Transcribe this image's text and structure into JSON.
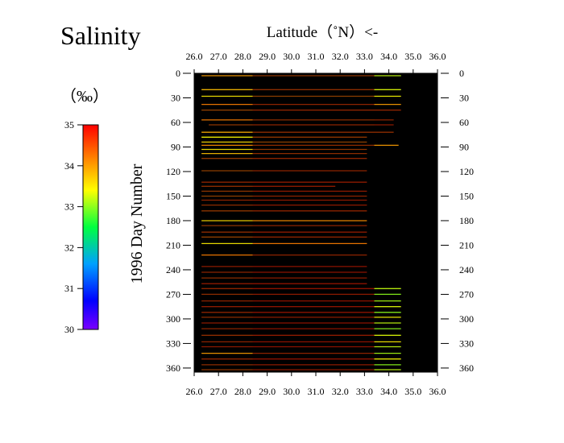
{
  "chart_data": {
    "type": "heatmap",
    "title": "Salinity",
    "xlabel": "Latitude（˚N）<-",
    "ylabel": "1996  Day  Number",
    "x_ticks": [
      "26.0",
      "27.0",
      "28.0",
      "29.0",
      "30.0",
      "31.0",
      "32.0",
      "33.0",
      "34.0",
      "35.0",
      "36.0"
    ],
    "y_ticks": [
      "0",
      "30",
      "60",
      "90",
      "120",
      "150",
      "180",
      "210",
      "240",
      "270",
      "300",
      "330",
      "360"
    ],
    "xlim": [
      26.0,
      36.0
    ],
    "ylim": [
      0,
      365
    ],
    "background_color": "#000000",
    "colorbar": {
      "label": "（‰）",
      "min": 30,
      "max": 35,
      "ticks": [
        "35",
        "34",
        "33",
        "32",
        "31",
        "30"
      ],
      "colors": [
        "#7a00ff",
        "#0000ff",
        "#00a0ff",
        "#00ff40",
        "#ffff00",
        "#ff8000",
        "#ff0000"
      ]
    },
    "transects": [
      {
        "day": 3,
        "lat_start": 26.3,
        "lat_end": 34.5,
        "segments": [
          {
            "from": 26.3,
            "to": 28.4,
            "s": 34.0
          },
          {
            "from": 28.4,
            "to": 33.4,
            "s": 34.4
          },
          {
            "from": 33.4,
            "to": 34.5,
            "s": 33.2
          }
        ]
      },
      {
        "day": 20,
        "lat_start": 26.3,
        "lat_end": 34.5,
        "segments": [
          {
            "from": 26.3,
            "to": 28.4,
            "s": 33.8
          },
          {
            "from": 28.4,
            "to": 33.4,
            "s": 34.5
          },
          {
            "from": 33.4,
            "to": 34.5,
            "s": 33.3
          }
        ]
      },
      {
        "day": 28,
        "lat_start": 26.3,
        "lat_end": 34.5,
        "segments": [
          {
            "from": 26.3,
            "to": 28.4,
            "s": 33.5
          },
          {
            "from": 28.4,
            "to": 33.4,
            "s": 34.3
          },
          {
            "from": 33.4,
            "to": 34.5,
            "s": 33.4
          }
        ]
      },
      {
        "day": 38,
        "lat_start": 26.3,
        "lat_end": 34.5,
        "segments": [
          {
            "from": 26.3,
            "to": 28.4,
            "s": 34.2
          },
          {
            "from": 28.4,
            "to": 33.4,
            "s": 34.6
          },
          {
            "from": 33.4,
            "to": 34.5,
            "s": 34.0
          }
        ]
      },
      {
        "day": 45,
        "lat_start": 26.3,
        "lat_end": 34.5,
        "segments": [
          {
            "from": 26.3,
            "to": 28.4,
            "s": 34.3
          },
          {
            "from": 28.4,
            "to": 33.4,
            "s": 34.6
          },
          {
            "from": 33.4,
            "to": 34.5,
            "s": 34.6
          }
        ]
      },
      {
        "day": 57,
        "lat_start": 26.3,
        "lat_end": 34.2,
        "segments": [
          {
            "from": 26.3,
            "to": 28.4,
            "s": 34.2
          },
          {
            "from": 28.4,
            "to": 33.4,
            "s": 34.5
          },
          {
            "from": 33.4,
            "to": 34.2,
            "s": 34.6
          }
        ]
      },
      {
        "day": 63,
        "lat_start": 26.6,
        "lat_end": 34.2,
        "segments": [
          {
            "from": 26.6,
            "to": 28.4,
            "s": 34.4
          },
          {
            "from": 28.4,
            "to": 33.4,
            "s": 34.6
          },
          {
            "from": 33.4,
            "to": 34.2,
            "s": 34.7
          }
        ]
      },
      {
        "day": 72,
        "lat_start": 26.3,
        "lat_end": 34.2,
        "segments": [
          {
            "from": 26.3,
            "to": 28.4,
            "s": 33.9
          },
          {
            "from": 28.4,
            "to": 33.4,
            "s": 34.5
          },
          {
            "from": 33.4,
            "to": 34.2,
            "s": 34.5
          }
        ]
      },
      {
        "day": 78,
        "lat_start": 26.3,
        "lat_end": 33.1,
        "segments": [
          {
            "from": 26.3,
            "to": 28.4,
            "s": 33.4
          },
          {
            "from": 28.4,
            "to": 33.1,
            "s": 34.4
          }
        ]
      },
      {
        "day": 84,
        "lat_start": 26.3,
        "lat_end": 33.1,
        "segments": [
          {
            "from": 26.3,
            "to": 28.4,
            "s": 33.6
          },
          {
            "from": 28.4,
            "to": 33.1,
            "s": 34.3
          }
        ]
      },
      {
        "day": 88,
        "lat_start": 26.3,
        "lat_end": 34.4,
        "segments": [
          {
            "from": 26.3,
            "to": 28.4,
            "s": 34.1
          },
          {
            "from": 28.4,
            "to": 33.4,
            "s": 34.5
          },
          {
            "from": 33.4,
            "to": 34.4,
            "s": 34.0
          }
        ]
      },
      {
        "day": 93,
        "lat_start": 26.3,
        "lat_end": 33.1,
        "segments": [
          {
            "from": 26.3,
            "to": 28.4,
            "s": 33.5
          },
          {
            "from": 28.4,
            "to": 33.1,
            "s": 34.4
          }
        ]
      },
      {
        "day": 98,
        "lat_start": 26.3,
        "lat_end": 33.1,
        "segments": [
          {
            "from": 26.3,
            "to": 28.4,
            "s": 33.8
          },
          {
            "from": 28.4,
            "to": 33.1,
            "s": 34.5
          }
        ]
      },
      {
        "day": 104,
        "lat_start": 26.3,
        "lat_end": 33.1,
        "segments": [
          {
            "from": 26.3,
            "to": 28.4,
            "s": 34.4
          },
          {
            "from": 28.4,
            "to": 33.1,
            "s": 34.6
          }
        ]
      },
      {
        "day": 119,
        "lat_start": 26.3,
        "lat_end": 33.1,
        "segments": [
          {
            "from": 26.3,
            "to": 28.4,
            "s": 34.3
          },
          {
            "from": 28.4,
            "to": 33.1,
            "s": 34.6
          }
        ]
      },
      {
        "day": 133,
        "lat_start": 26.3,
        "lat_end": 33.1,
        "segments": [
          {
            "from": 26.3,
            "to": 28.4,
            "s": 34.6
          },
          {
            "from": 28.4,
            "to": 33.1,
            "s": 34.7
          }
        ]
      },
      {
        "day": 138,
        "lat_start": 26.3,
        "lat_end": 31.8,
        "segments": [
          {
            "from": 26.3,
            "to": 28.4,
            "s": 34.5
          },
          {
            "from": 28.4,
            "to": 31.8,
            "s": 34.7
          }
        ]
      },
      {
        "day": 144,
        "lat_start": 26.3,
        "lat_end": 33.1,
        "segments": [
          {
            "from": 26.3,
            "to": 28.4,
            "s": 34.4
          },
          {
            "from": 28.4,
            "to": 33.1,
            "s": 34.7
          }
        ]
      },
      {
        "day": 150,
        "lat_start": 26.3,
        "lat_end": 33.1,
        "segments": [
          {
            "from": 26.3,
            "to": 28.4,
            "s": 34.3
          },
          {
            "from": 28.4,
            "to": 33.1,
            "s": 34.6
          }
        ]
      },
      {
        "day": 155,
        "lat_start": 26.3,
        "lat_end": 33.1,
        "segments": [
          {
            "from": 26.3,
            "to": 28.4,
            "s": 34.6
          },
          {
            "from": 28.4,
            "to": 33.1,
            "s": 34.7
          }
        ]
      },
      {
        "day": 161,
        "lat_start": 26.3,
        "lat_end": 33.1,
        "segments": [
          {
            "from": 26.3,
            "to": 28.4,
            "s": 34.5
          },
          {
            "from": 28.4,
            "to": 33.1,
            "s": 34.7
          }
        ]
      },
      {
        "day": 168,
        "lat_start": 26.3,
        "lat_end": 33.1,
        "segments": [
          {
            "from": 26.3,
            "to": 28.4,
            "s": 34.4
          },
          {
            "from": 28.4,
            "to": 33.1,
            "s": 34.6
          }
        ]
      },
      {
        "day": 180,
        "lat_start": 26.3,
        "lat_end": 33.1,
        "segments": [
          {
            "from": 26.3,
            "to": 28.4,
            "s": 33.6
          },
          {
            "from": 28.4,
            "to": 33.1,
            "s": 34.1
          }
        ]
      },
      {
        "day": 186,
        "lat_start": 26.3,
        "lat_end": 33.1,
        "segments": [
          {
            "from": 26.3,
            "to": 28.4,
            "s": 34.4
          },
          {
            "from": 28.4,
            "to": 33.1,
            "s": 34.6
          }
        ]
      },
      {
        "day": 194,
        "lat_start": 26.3,
        "lat_end": 33.1,
        "segments": [
          {
            "from": 26.3,
            "to": 28.4,
            "s": 34.5
          },
          {
            "from": 28.4,
            "to": 33.1,
            "s": 34.7
          }
        ]
      },
      {
        "day": 200,
        "lat_start": 26.3,
        "lat_end": 33.1,
        "segments": [
          {
            "from": 26.3,
            "to": 28.4,
            "s": 34.3
          },
          {
            "from": 28.4,
            "to": 33.1,
            "s": 34.6
          }
        ]
      },
      {
        "day": 208,
        "lat_start": 26.3,
        "lat_end": 33.1,
        "segments": [
          {
            "from": 26.3,
            "to": 28.4,
            "s": 33.5
          },
          {
            "from": 28.4,
            "to": 33.1,
            "s": 34.2
          }
        ]
      },
      {
        "day": 222,
        "lat_start": 26.3,
        "lat_end": 33.1,
        "segments": [
          {
            "from": 26.3,
            "to": 28.4,
            "s": 34.2
          },
          {
            "from": 28.4,
            "to": 33.1,
            "s": 34.6
          }
        ]
      },
      {
        "day": 236,
        "lat_start": 26.3,
        "lat_end": 33.1,
        "segments": [
          {
            "from": 26.3,
            "to": 28.4,
            "s": 34.7
          },
          {
            "from": 28.4,
            "to": 33.1,
            "s": 34.8
          }
        ]
      },
      {
        "day": 243,
        "lat_start": 26.3,
        "lat_end": 33.1,
        "segments": [
          {
            "from": 26.3,
            "to": 28.4,
            "s": 34.6
          },
          {
            "from": 28.4,
            "to": 33.1,
            "s": 34.8
          }
        ]
      },
      {
        "day": 250,
        "lat_start": 26.3,
        "lat_end": 33.1,
        "segments": [
          {
            "from": 26.3,
            "to": 28.4,
            "s": 34.5
          },
          {
            "from": 28.4,
            "to": 33.1,
            "s": 34.7
          }
        ]
      },
      {
        "day": 257,
        "lat_start": 26.3,
        "lat_end": 33.1,
        "segments": [
          {
            "from": 26.3,
            "to": 28.4,
            "s": 34.7
          },
          {
            "from": 28.4,
            "to": 33.1,
            "s": 34.8
          }
        ]
      },
      {
        "day": 263,
        "lat_start": 26.3,
        "lat_end": 34.5,
        "segments": [
          {
            "from": 26.3,
            "to": 28.4,
            "s": 34.6
          },
          {
            "from": 28.4,
            "to": 33.4,
            "s": 34.8
          },
          {
            "from": 33.4,
            "to": 34.5,
            "s": 33.2
          }
        ]
      },
      {
        "day": 270,
        "lat_start": 26.3,
        "lat_end": 34.5,
        "segments": [
          {
            "from": 26.3,
            "to": 28.4,
            "s": 34.5
          },
          {
            "from": 28.4,
            "to": 33.4,
            "s": 34.7
          },
          {
            "from": 33.4,
            "to": 34.5,
            "s": 33.0
          }
        ]
      },
      {
        "day": 278,
        "lat_start": 26.3,
        "lat_end": 34.5,
        "segments": [
          {
            "from": 26.3,
            "to": 28.4,
            "s": 34.6
          },
          {
            "from": 28.4,
            "to": 33.4,
            "s": 34.8
          },
          {
            "from": 33.4,
            "to": 34.5,
            "s": 33.1
          }
        ]
      },
      {
        "day": 285,
        "lat_start": 26.3,
        "lat_end": 34.5,
        "segments": [
          {
            "from": 26.3,
            "to": 28.4,
            "s": 34.7
          },
          {
            "from": 28.4,
            "to": 33.4,
            "s": 34.8
          },
          {
            "from": 33.4,
            "to": 34.5,
            "s": 33.3
          }
        ]
      },
      {
        "day": 292,
        "lat_start": 26.3,
        "lat_end": 34.5,
        "segments": [
          {
            "from": 26.3,
            "to": 28.4,
            "s": 34.6
          },
          {
            "from": 28.4,
            "to": 33.4,
            "s": 34.8
          },
          {
            "from": 33.4,
            "to": 34.5,
            "s": 33.0
          }
        ]
      },
      {
        "day": 298,
        "lat_start": 26.3,
        "lat_end": 34.5,
        "segments": [
          {
            "from": 26.3,
            "to": 28.4,
            "s": 34.5
          },
          {
            "from": 28.4,
            "to": 33.4,
            "s": 34.7
          },
          {
            "from": 33.4,
            "to": 34.5,
            "s": 33.4
          }
        ]
      },
      {
        "day": 305,
        "lat_start": 26.3,
        "lat_end": 34.5,
        "segments": [
          {
            "from": 26.3,
            "to": 28.4,
            "s": 34.7
          },
          {
            "from": 28.4,
            "to": 33.4,
            "s": 34.8
          },
          {
            "from": 33.4,
            "to": 34.5,
            "s": 33.2
          }
        ]
      },
      {
        "day": 312,
        "lat_start": 26.3,
        "lat_end": 34.5,
        "segments": [
          {
            "from": 26.3,
            "to": 28.4,
            "s": 34.6
          },
          {
            "from": 28.4,
            "to": 33.4,
            "s": 34.8
          },
          {
            "from": 33.4,
            "to": 34.5,
            "s": 33.0
          }
        ]
      },
      {
        "day": 320,
        "lat_start": 26.3,
        "lat_end": 34.5,
        "segments": [
          {
            "from": 26.3,
            "to": 28.4,
            "s": 34.5
          },
          {
            "from": 28.4,
            "to": 33.4,
            "s": 34.7
          },
          {
            "from": 33.4,
            "to": 34.5,
            "s": 33.3
          }
        ]
      },
      {
        "day": 328,
        "lat_start": 26.3,
        "lat_end": 34.5,
        "segments": [
          {
            "from": 26.3,
            "to": 28.4,
            "s": 34.6
          },
          {
            "from": 28.4,
            "to": 33.4,
            "s": 34.8
          },
          {
            "from": 33.4,
            "to": 34.5,
            "s": 33.5
          }
        ]
      },
      {
        "day": 334,
        "lat_start": 26.3,
        "lat_end": 34.5,
        "segments": [
          {
            "from": 26.3,
            "to": 28.4,
            "s": 34.7
          },
          {
            "from": 28.4,
            "to": 33.4,
            "s": 34.8
          },
          {
            "from": 33.4,
            "to": 34.5,
            "s": 33.2
          }
        ]
      },
      {
        "day": 342,
        "lat_start": 26.3,
        "lat_end": 34.5,
        "segments": [
          {
            "from": 26.3,
            "to": 28.4,
            "s": 34.0
          },
          {
            "from": 28.4,
            "to": 33.4,
            "s": 34.6
          },
          {
            "from": 33.4,
            "to": 34.5,
            "s": 33.1
          }
        ]
      },
      {
        "day": 349,
        "lat_start": 26.3,
        "lat_end": 34.5,
        "segments": [
          {
            "from": 26.3,
            "to": 28.4,
            "s": 34.6
          },
          {
            "from": 28.4,
            "to": 33.4,
            "s": 34.8
          },
          {
            "from": 33.4,
            "to": 34.5,
            "s": 33.4
          }
        ]
      },
      {
        "day": 356,
        "lat_start": 26.3,
        "lat_end": 34.5,
        "segments": [
          {
            "from": 26.3,
            "to": 28.4,
            "s": 34.5
          },
          {
            "from": 28.4,
            "to": 33.4,
            "s": 34.7
          },
          {
            "from": 33.4,
            "to": 34.5,
            "s": 33.0
          }
        ]
      },
      {
        "day": 362,
        "lat_start": 26.3,
        "lat_end": 34.5,
        "segments": [
          {
            "from": 26.3,
            "to": 28.4,
            "s": 34.4
          },
          {
            "from": 28.4,
            "to": 33.4,
            "s": 34.7
          },
          {
            "from": 33.4,
            "to": 34.5,
            "s": 33.2
          }
        ]
      }
    ]
  }
}
